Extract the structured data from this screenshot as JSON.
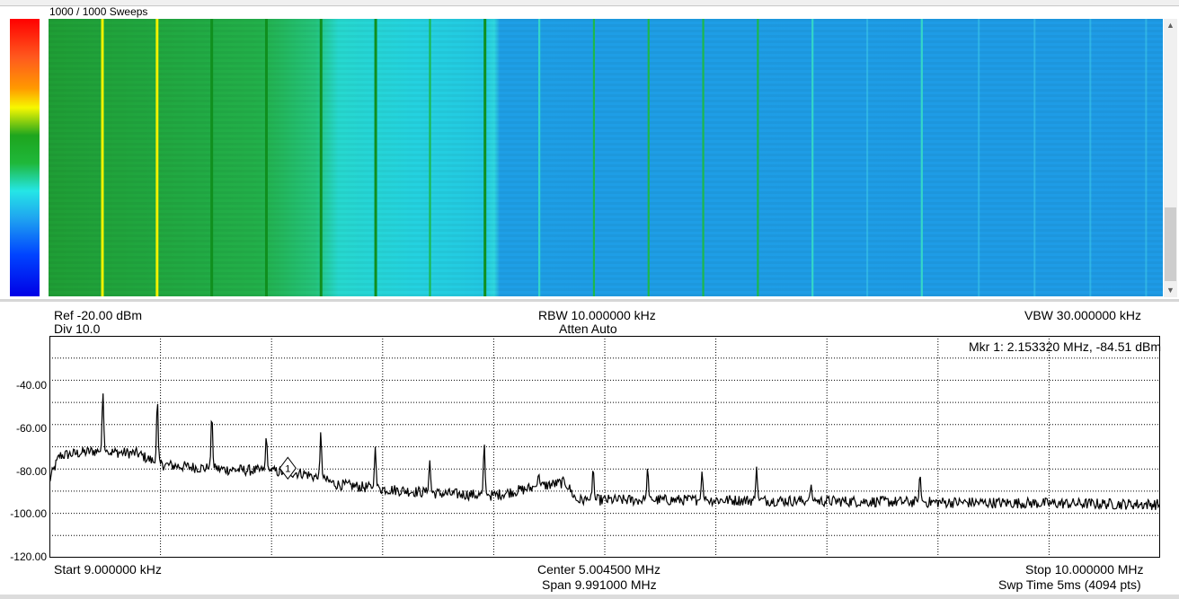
{
  "waterfall": {
    "sweeps_label": "1000 / 1000 Sweeps"
  },
  "params": {
    "ref": "Ref -20.00 dBm",
    "div": "Div 10.0",
    "rbw": "RBW 10.000000 kHz",
    "atten": "Atten Auto",
    "vbw": "VBW 30.000000 kHz"
  },
  "marker": {
    "readout": "Mkr 1: 2.153320 MHz, -84.51 dBm",
    "number": "1"
  },
  "y_axis": {
    "ticks": [
      "-40.00",
      "-60.00",
      "-80.00",
      "-100.00",
      "-120.00"
    ]
  },
  "footer": {
    "start": "Start 9.000000 kHz",
    "center": "Center 5.004500 MHz",
    "span": "Span 9.991000 MHz",
    "stop": "Stop 10.000000 MHz",
    "swp_time": "Swp Time 5ms (4094 pts)"
  },
  "colors": {
    "trace": "#000000",
    "grid": "#000000",
    "waterfall_low": "#1e9be6",
    "waterfall_mid": "#22d3dd",
    "waterfall_high": "#22a83a",
    "peak_yellow": "#f2f200"
  },
  "chart_data": {
    "type": "line",
    "xlabel": "",
    "ylabel": "",
    "x_unit": "MHz",
    "y_unit": "dBm",
    "xlim": [
      0.009,
      10.0
    ],
    "ylim": [
      -120,
      -20
    ],
    "grid": true,
    "noise_floor": [
      {
        "x": 0.009,
        "y": -85
      },
      {
        "x": 0.1,
        "y": -74
      },
      {
        "x": 0.4,
        "y": -72
      },
      {
        "x": 0.8,
        "y": -73
      },
      {
        "x": 1.0,
        "y": -78
      },
      {
        "x": 1.5,
        "y": -80
      },
      {
        "x": 2.0,
        "y": -81
      },
      {
        "x": 2.3,
        "y": -82
      },
      {
        "x": 2.6,
        "y": -87
      },
      {
        "x": 3.0,
        "y": -89
      },
      {
        "x": 3.5,
        "y": -91
      },
      {
        "x": 4.0,
        "y": -92
      },
      {
        "x": 4.4,
        "y": -88
      },
      {
        "x": 4.65,
        "y": -86
      },
      {
        "x": 4.75,
        "y": -94
      },
      {
        "x": 6.0,
        "y": -94
      },
      {
        "x": 8.0,
        "y": -95
      },
      {
        "x": 10.0,
        "y": -96
      }
    ],
    "peaks": [
      {
        "x": 0.49,
        "y": -45
      },
      {
        "x": 0.98,
        "y": -48
      },
      {
        "x": 1.47,
        "y": -55
      },
      {
        "x": 1.96,
        "y": -65
      },
      {
        "x": 2.45,
        "y": -63
      },
      {
        "x": 2.94,
        "y": -70
      },
      {
        "x": 3.43,
        "y": -76
      },
      {
        "x": 3.92,
        "y": -68
      },
      {
        "x": 4.41,
        "y": -82
      },
      {
        "x": 4.9,
        "y": -79
      },
      {
        "x": 5.39,
        "y": -79
      },
      {
        "x": 5.88,
        "y": -81
      },
      {
        "x": 6.37,
        "y": -79
      },
      {
        "x": 6.86,
        "y": -87
      },
      {
        "x": 7.84,
        "y": -82
      }
    ],
    "markers": [
      {
        "label": "1",
        "x": 2.15332,
        "y": -84.51
      }
    ]
  }
}
